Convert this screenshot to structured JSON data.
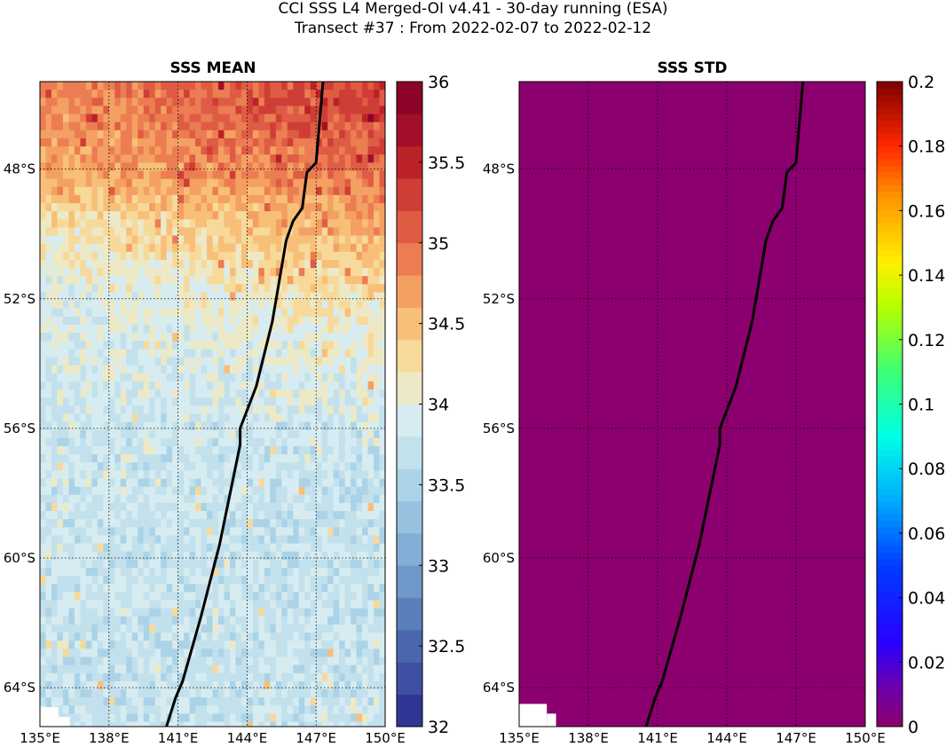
{
  "figure": {
    "title_line1": "CCI SSS L4 Merged-OI v4.41 - 30-day running (ESA)",
    "title_line2": "Transect #37 : From 2022-02-07 to 2022-02-12"
  },
  "panels": [
    {
      "title": "SSS MEAN",
      "colorbar": {
        "min": 32,
        "max": 36,
        "ticks": [
          "32",
          "32.5",
          "33",
          "33.5",
          "34",
          "34.5",
          "35",
          "35.5",
          "36"
        ],
        "colormap": "RdYlBu_r discrete"
      },
      "x_ticks": [
        "135°E",
        "138°E",
        "141°E",
        "144°E",
        "147°E",
        "150°E"
      ],
      "y_ticks": [
        "48°S",
        "52°S",
        "56°S",
        "60°S",
        "64°S"
      ]
    },
    {
      "title": "SSS STD",
      "colorbar": {
        "min": 0,
        "max": 0.2,
        "ticks": [
          "0",
          "0.02",
          "0.04",
          "0.06",
          "0.08",
          "0.1",
          "0.12",
          "0.14",
          "0.16",
          "0.18",
          "0.2"
        ],
        "colormap": "jet-like",
        "fill_color": "#8b006e"
      },
      "x_ticks": [
        "135°E",
        "138°E",
        "141°E",
        "144°E",
        "147°E",
        "150°E"
      ],
      "y_ticks": [
        "48°S",
        "52°S",
        "56°S",
        "60°S",
        "64°S"
      ]
    }
  ],
  "chart_data": [
    {
      "type": "heatmap",
      "title": "SSS MEAN",
      "variable": "sea surface salinity mean",
      "lon_range": [
        135,
        150
      ],
      "lat_range": [
        -65.2,
        -45.3
      ],
      "value_range": [
        32,
        36
      ],
      "description_by_lat": [
        {
          "lat": -46,
          "value_west": 34.8,
          "value_east": 35.3
        },
        {
          "lat": -48,
          "value_west": 34.6,
          "value_east": 35.0
        },
        {
          "lat": -50,
          "value_west": 34.1,
          "value_east": 34.6
        },
        {
          "lat": -52,
          "value_west": 33.9,
          "value_east": 34.2
        },
        {
          "lat": -56,
          "value_west": 33.8,
          "value_east": 33.8
        },
        {
          "lat": -60,
          "value_west": 33.8,
          "value_east": 33.7
        },
        {
          "lat": -64,
          "value_west": 33.7,
          "value_east": 33.8
        }
      ],
      "transect": {
        "color": "#000000",
        "points": [
          [
            147.3,
            -45.3
          ],
          [
            147.0,
            -47.8
          ],
          [
            146.6,
            -48.1
          ],
          [
            146.4,
            -49.2
          ],
          [
            146.0,
            -49.6
          ],
          [
            145.7,
            -50.2
          ],
          [
            145.1,
            -52.7
          ],
          [
            144.4,
            -54.7
          ],
          [
            143.7,
            -56.0
          ],
          [
            143.7,
            -56.5
          ],
          [
            142.8,
            -59.6
          ],
          [
            142.0,
            -61.8
          ],
          [
            141.2,
            -63.8
          ],
          [
            140.9,
            -64.3
          ],
          [
            140.5,
            -65.2
          ]
        ]
      }
    },
    {
      "type": "heatmap",
      "title": "SSS STD",
      "variable": "sea surface salinity standard deviation",
      "lon_range": [
        135,
        150
      ],
      "lat_range": [
        -65.2,
        -45.3
      ],
      "value_range": [
        0,
        0.2
      ],
      "uniform_value": 0,
      "transect": {
        "color": "#000000",
        "points": [
          [
            147.3,
            -45.3
          ],
          [
            147.0,
            -47.8
          ],
          [
            146.6,
            -48.1
          ],
          [
            146.4,
            -49.2
          ],
          [
            146.0,
            -49.6
          ],
          [
            145.7,
            -50.2
          ],
          [
            145.1,
            -52.7
          ],
          [
            144.4,
            -54.7
          ],
          [
            143.7,
            -56.0
          ],
          [
            143.7,
            -56.5
          ],
          [
            142.8,
            -59.6
          ],
          [
            142.0,
            -61.8
          ],
          [
            141.2,
            -63.8
          ],
          [
            140.9,
            -64.3
          ],
          [
            140.5,
            -65.2
          ]
        ]
      }
    }
  ]
}
